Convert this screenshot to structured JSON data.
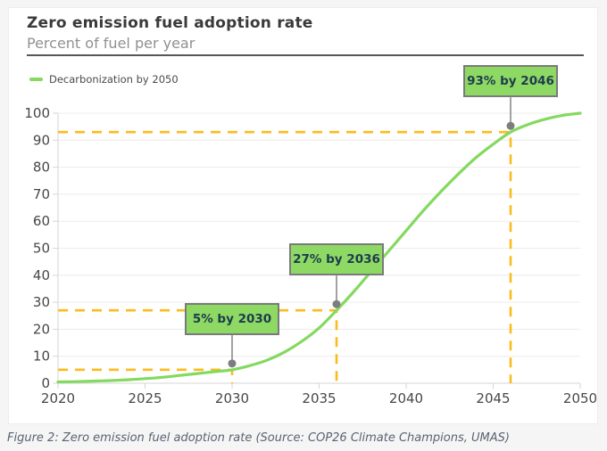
{
  "page": {
    "caption": "Figure 2: Zero emission fuel adoption rate (Source: COP26 Climate Champions, UMAS)"
  },
  "header": {
    "title": "Zero emission fuel adoption rate",
    "subtitle": "Percent of fuel per year"
  },
  "legend": {
    "label": "Decarbonization by 2050"
  },
  "colors": {
    "curve_green": "#84d95f",
    "annotation_fill": "#8ed964",
    "annotation_border": "#7a7a7a",
    "annotation_text": "#1d3c4d",
    "guide_amber": "#fcbb1c",
    "grid_gray": "#ececec",
    "axis_gray": "#d6d6d6",
    "dot_gray": "#7d7d7d",
    "tick_label": "#474747"
  },
  "chart_data": {
    "type": "line",
    "title": "Zero emission fuel adoption rate",
    "subtitle": "Percent of fuel per year",
    "xlabel": "",
    "ylabel": "Percent of fuel per year",
    "xlim": [
      2020,
      2050
    ],
    "ylim": [
      0,
      100
    ],
    "x_ticks": [
      2020,
      2025,
      2030,
      2035,
      2040,
      2045,
      2050
    ],
    "y_ticks": [
      0,
      10,
      20,
      30,
      40,
      50,
      60,
      70,
      80,
      90,
      100
    ],
    "grid": "horizontal",
    "legend_position": "top-left",
    "series": [
      {
        "name": "Decarbonization by 2050",
        "x": [
          2020,
          2021,
          2022,
          2023,
          2024,
          2025,
          2026,
          2027,
          2028,
          2029,
          2030,
          2031,
          2032,
          2033,
          2034,
          2035,
          2036,
          2037,
          2038,
          2039,
          2040,
          2041,
          2042,
          2043,
          2044,
          2045,
          2046,
          2047,
          2048,
          2049,
          2050
        ],
        "y": [
          0.5,
          0.6,
          0.8,
          1.0,
          1.3,
          1.7,
          2.2,
          2.9,
          3.6,
          4.3,
          5,
          6.5,
          8.5,
          11.5,
          15.5,
          20.5,
          27,
          34,
          41.5,
          49,
          56.5,
          64,
          71,
          77.5,
          83.5,
          88.5,
          93,
          95.8,
          97.8,
          99.2,
          100
        ]
      }
    ],
    "annotations": [
      {
        "label": "5% by 2030",
        "year": 2030,
        "value": 5
      },
      {
        "label": "27% by 2036",
        "year": 2036,
        "value": 27
      },
      {
        "label": "93% by 2046",
        "year": 2046,
        "value": 93
      }
    ]
  }
}
